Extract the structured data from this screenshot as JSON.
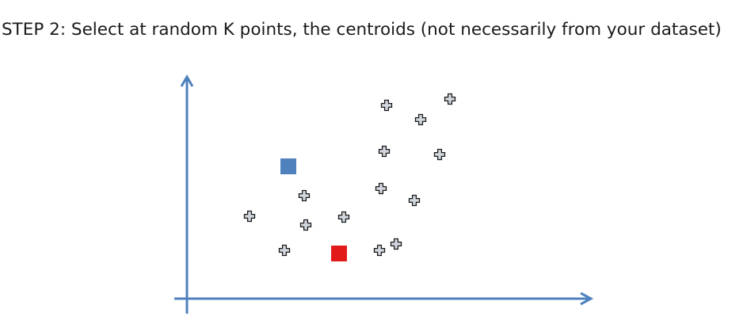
{
  "heading": "STEP 2: Select at random K points, the centroids (not necessarily from your dataset)",
  "colors": {
    "axis": "#4f81bd",
    "centroid_1": "#4f81bd",
    "centroid_2": "#e31a1a",
    "point_fill": "#d3d7df",
    "point_stroke": "#1a1a1a"
  },
  "icons": {
    "data_point": "plus-cross-icon",
    "centroid": "square-marker"
  }
}
